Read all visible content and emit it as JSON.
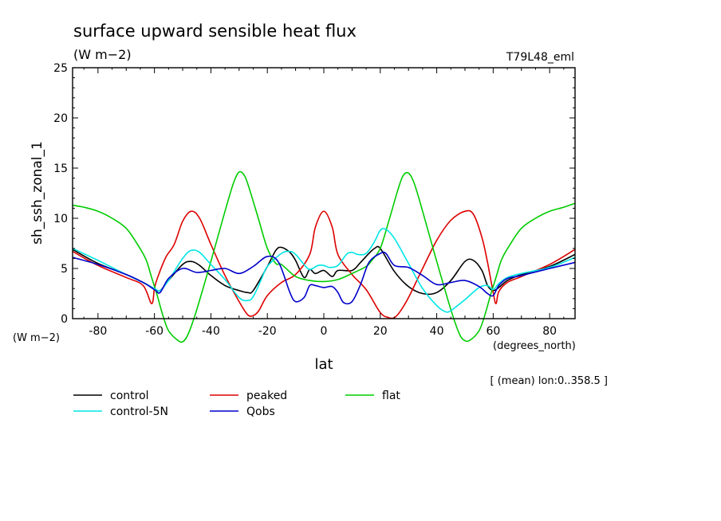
{
  "header": {
    "title": "surface upward sensible heat flux",
    "units": "(W m−2)",
    "run_id": "T79L48_eml"
  },
  "footnote": "[ (mean) lon:0..358.5 ]",
  "chart_data": {
    "type": "line",
    "title": "surface upward sensible heat flux",
    "xlabel": "lat",
    "xunits": "(degrees_north)",
    "ylabel": "sh_ssh_zonal_1",
    "yunits": "(W m−2)",
    "xlim": [
      -89,
      89
    ],
    "ylim": [
      0,
      25
    ],
    "xticks": [
      -80,
      -60,
      -40,
      -20,
      0,
      20,
      40,
      60,
      80
    ],
    "yticks": [
      0,
      5,
      10,
      15,
      20,
      25
    ],
    "grid": false,
    "legend_position": "bottom",
    "series": [
      {
        "name": "control",
        "color": "#000000",
        "x": [
          -89,
          -80,
          -70,
          -64,
          -60,
          -58,
          -55,
          -50,
          -47,
          -44,
          -40,
          -35,
          -30,
          -27,
          -25,
          -20,
          -17,
          -15,
          -12,
          -10,
          -7,
          -5,
          -3,
          0,
          3,
          5,
          10,
          13,
          16,
          18,
          20,
          25,
          30,
          35,
          40,
          45,
          50,
          53,
          56,
          58,
          60,
          62,
          65,
          70,
          80,
          89
        ],
        "values": [
          6.9,
          5.5,
          4.4,
          3.6,
          3.0,
          2.8,
          3.8,
          5.4,
          5.7,
          5.3,
          4.3,
          3.3,
          2.8,
          2.6,
          2.8,
          5.2,
          6.8,
          7.1,
          6.6,
          5.8,
          4.1,
          4.9,
          4.5,
          4.8,
          4.2,
          4.8,
          4.8,
          5.6,
          6.5,
          7.0,
          7.0,
          4.7,
          3.2,
          2.5,
          2.6,
          3.8,
          5.7,
          5.8,
          4.8,
          3.3,
          2.8,
          3.1,
          3.8,
          4.4,
          5.2,
          6.4
        ]
      },
      {
        "name": "peaked",
        "color": "#dd0000",
        "x": [
          -89,
          -80,
          -70,
          -64,
          -61,
          -60,
          -59,
          -56,
          -53,
          -50,
          -47,
          -44,
          -40,
          -35,
          -30,
          -27,
          -25,
          -23,
          -20,
          -15,
          -10,
          -5,
          -3,
          0,
          3,
          5,
          10,
          15,
          20,
          23,
          25,
          27,
          30,
          35,
          40,
          45,
          50,
          53,
          56,
          58,
          60,
          61,
          62,
          65,
          70,
          80,
          89
        ],
        "values": [
          6.7,
          5.3,
          4.1,
          3.3,
          1.5,
          3.0,
          4.0,
          6.1,
          7.4,
          9.7,
          10.7,
          10.0,
          7.4,
          4.3,
          1.7,
          0.4,
          0.3,
          0.8,
          2.3,
          3.6,
          4.4,
          6.4,
          9.1,
          10.7,
          9.1,
          6.4,
          4.4,
          2.9,
          0.6,
          0.1,
          0.1,
          0.7,
          2.1,
          5.0,
          7.8,
          9.8,
          10.7,
          10.4,
          8.1,
          5.6,
          2.6,
          1.5,
          2.7,
          3.6,
          4.2,
          5.4,
          6.9
        ]
      },
      {
        "name": "flat",
        "color": "#00cc00",
        "x": [
          -89,
          -85,
          -80,
          -75,
          -70,
          -66,
          -63,
          -61,
          -59,
          -57,
          -55,
          -52,
          -50,
          -48,
          -45,
          -40,
          -35,
          -32,
          -30,
          -28,
          -26,
          -23,
          -20,
          -17,
          -15,
          -10,
          -5,
          0,
          5,
          10,
          15,
          17,
          20,
          23,
          26,
          28,
          30,
          32,
          35,
          40,
          45,
          48,
          50,
          52,
          55,
          57,
          59,
          61,
          63,
          66,
          70,
          75,
          80,
          85,
          89
        ],
        "values": [
          11.3,
          11.1,
          10.7,
          10.0,
          9.0,
          7.4,
          5.9,
          4.1,
          2.3,
          0.3,
          -1.2,
          -2.1,
          -2.3,
          -1.5,
          0.9,
          5.7,
          10.7,
          13.5,
          14.6,
          14.2,
          12.6,
          9.8,
          7.0,
          5.5,
          5.4,
          4.2,
          3.8,
          3.7,
          3.9,
          4.5,
          5.2,
          5.8,
          7.0,
          9.7,
          12.6,
          14.2,
          14.5,
          13.5,
          10.7,
          5.7,
          0.9,
          -1.5,
          -2.2,
          -2.1,
          -1.2,
          0.3,
          2.3,
          4.1,
          5.9,
          7.4,
          9.0,
          10.0,
          10.7,
          11.1,
          11.5
        ]
      },
      {
        "name": "control-5N",
        "color": "#00e5e5",
        "x": [
          -89,
          -80,
          -70,
          -64,
          -60,
          -58,
          -55,
          -50,
          -47,
          -44,
          -40,
          -35,
          -30,
          -27,
          -25,
          -22,
          -20,
          -15,
          -12,
          -10,
          -7,
          -5,
          -2,
          0,
          2,
          5,
          8,
          10,
          12,
          15,
          18,
          20,
          22,
          25,
          30,
          35,
          40,
          43,
          45,
          50,
          55,
          58,
          60,
          62,
          65,
          70,
          80,
          89
        ],
        "values": [
          7.0,
          5.8,
          4.4,
          3.6,
          3.0,
          2.8,
          3.8,
          6.0,
          6.8,
          6.6,
          5.4,
          3.9,
          2.1,
          1.8,
          2.2,
          4.0,
          5.2,
          6.5,
          6.7,
          6.4,
          5.4,
          4.9,
          5.3,
          5.3,
          5.1,
          5.3,
          6.4,
          6.6,
          6.4,
          6.5,
          7.7,
          8.8,
          8.9,
          8.0,
          5.5,
          3.0,
          1.3,
          0.7,
          0.8,
          1.9,
          3.1,
          3.3,
          2.9,
          3.5,
          4.1,
          4.5,
          5.1,
          6.1
        ]
      },
      {
        "name": "Qobs",
        "color": "#0000cc",
        "x": [
          -89,
          -80,
          -70,
          -64,
          -60,
          -58,
          -55,
          -50,
          -45,
          -40,
          -35,
          -30,
          -25,
          -20,
          -16,
          -12,
          -10,
          -7,
          -5,
          -3,
          0,
          3,
          5,
          7,
          10,
          13,
          16,
          20,
          22,
          25,
          30,
          35,
          40,
          45,
          50,
          55,
          58,
          60,
          62,
          65,
          70,
          80,
          89
        ],
        "values": [
          6.1,
          5.4,
          4.4,
          3.6,
          2.9,
          2.6,
          4.0,
          5.0,
          4.6,
          4.8,
          5.0,
          4.5,
          5.2,
          6.2,
          5.6,
          2.6,
          1.7,
          2.1,
          3.3,
          3.3,
          3.1,
          3.2,
          2.6,
          1.6,
          1.7,
          3.4,
          5.6,
          6.5,
          6.5,
          5.3,
          5.1,
          4.3,
          3.4,
          3.6,
          3.8,
          3.2,
          2.5,
          2.3,
          3.3,
          4.0,
          4.3,
          5.0,
          5.6
        ]
      }
    ]
  }
}
